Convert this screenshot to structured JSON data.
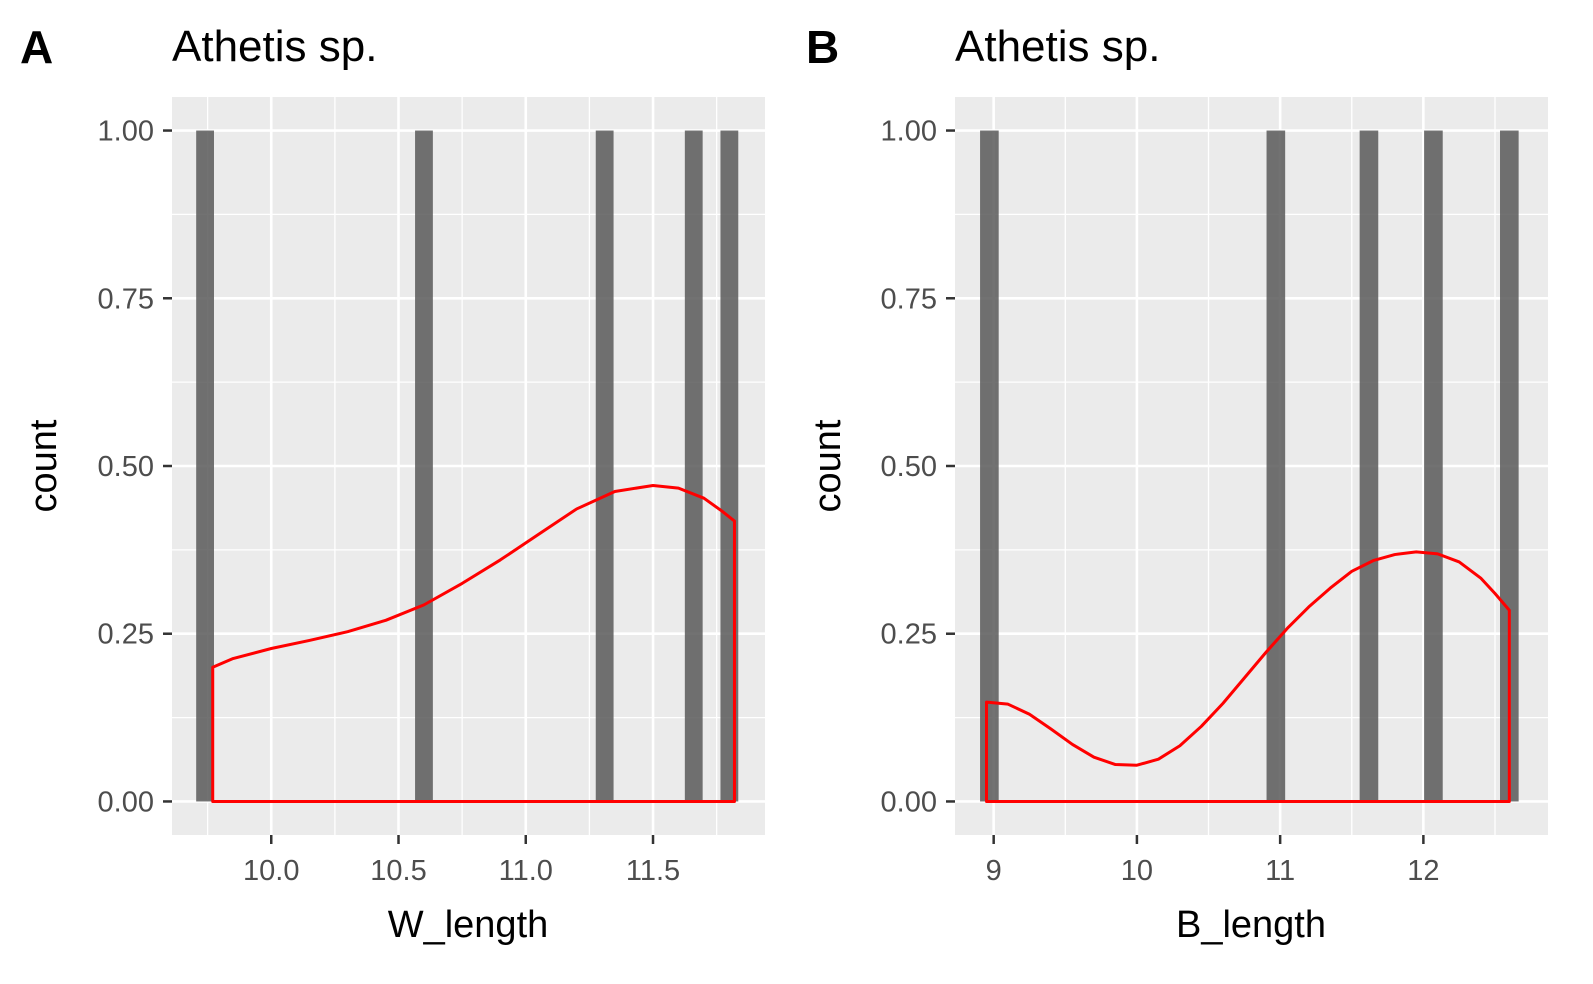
{
  "chart_data": [
    {
      "type": "bar",
      "panel_tag": "A",
      "title": "Athetis sp.",
      "xlabel": "W_length",
      "ylabel": "count",
      "xlim": [
        9.61,
        11.94
      ],
      "ylim": [
        -0.05,
        1.05
      ],
      "x_ticks": [
        10.0,
        10.5,
        11.0,
        11.5
      ],
      "x_tick_labels": [
        "10.0",
        "10.5",
        "11.0",
        "11.5"
      ],
      "y_ticks": [
        0,
        0.25,
        0.5,
        0.75,
        1.0
      ],
      "y_tick_labels": [
        "0.00",
        "0.25",
        "0.50",
        "0.75",
        "1.00"
      ],
      "bar_width": 0.07,
      "bars": [
        {
          "x": 9.74,
          "count": 1
        },
        {
          "x": 10.6,
          "count": 1
        },
        {
          "x": 11.31,
          "count": 1
        },
        {
          "x": 11.66,
          "count": 1
        },
        {
          "x": 11.8,
          "count": 1
        }
      ],
      "density": {
        "color": "#ff0000",
        "x": [
          9.77,
          9.85,
          10.0,
          10.15,
          10.3,
          10.45,
          10.6,
          10.75,
          10.9,
          11.05,
          11.2,
          11.35,
          11.5,
          11.6,
          11.7,
          11.77,
          11.82
        ],
        "y": [
          0.2,
          0.213,
          0.228,
          0.24,
          0.253,
          0.27,
          0.293,
          0.325,
          0.36,
          0.398,
          0.436,
          0.462,
          0.471,
          0.467,
          0.452,
          0.433,
          0.418
        ]
      },
      "grid": true,
      "background": "#ebebeb"
    },
    {
      "type": "bar",
      "panel_tag": "B",
      "title": "Athetis sp.",
      "xlabel": "B_length",
      "ylabel": "count",
      "xlim": [
        8.73,
        12.87
      ],
      "ylim": [
        -0.05,
        1.05
      ],
      "x_ticks": [
        9,
        10,
        11,
        12
      ],
      "x_tick_labels": [
        "9",
        "10",
        "11",
        "12"
      ],
      "y_ticks": [
        0,
        0.25,
        0.5,
        0.75,
        1.0
      ],
      "y_tick_labels": [
        "0.00",
        "0.25",
        "0.50",
        "0.75",
        "1.00"
      ],
      "bar_width": 0.13,
      "bars": [
        {
          "x": 8.97,
          "count": 1
        },
        {
          "x": 10.97,
          "count": 1
        },
        {
          "x": 11.62,
          "count": 1
        },
        {
          "x": 12.07,
          "count": 1
        },
        {
          "x": 12.6,
          "count": 1
        }
      ],
      "density": {
        "color": "#ff0000",
        "x": [
          8.95,
          9.1,
          9.25,
          9.4,
          9.55,
          9.7,
          9.85,
          10.0,
          10.15,
          10.3,
          10.45,
          10.6,
          10.75,
          10.9,
          11.05,
          11.2,
          11.35,
          11.5,
          11.65,
          11.8,
          11.95,
          12.1,
          12.25,
          12.4,
          12.5,
          12.6
        ],
        "y": [
          0.148,
          0.145,
          0.13,
          0.108,
          0.085,
          0.066,
          0.055,
          0.054,
          0.063,
          0.083,
          0.112,
          0.146,
          0.184,
          0.222,
          0.258,
          0.29,
          0.318,
          0.343,
          0.359,
          0.368,
          0.372,
          0.369,
          0.357,
          0.333,
          0.31,
          0.285
        ]
      },
      "grid": true,
      "background": "#ebebeb"
    }
  ]
}
